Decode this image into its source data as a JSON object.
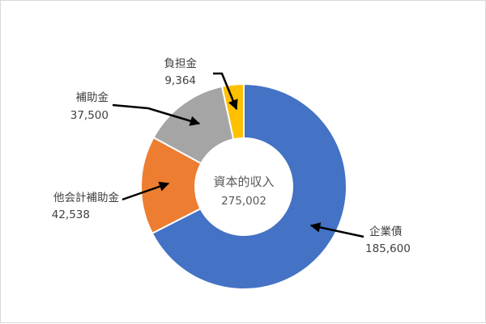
{
  "chart_data": {
    "type": "donut",
    "title": "",
    "center": {
      "label": "資本的収入",
      "total": "275,002"
    },
    "slices": [
      {
        "name": "企業債",
        "value": 185600,
        "value_label": "185,600",
        "color": "#4472c4"
      },
      {
        "name": "他会計補助金",
        "value": 42538,
        "value_label": "42,538",
        "color": "#ed7d31"
      },
      {
        "name": "補助金",
        "value": 37500,
        "value_label": "37,500",
        "color": "#a5a5a5"
      },
      {
        "name": "負担金",
        "value": 9364,
        "value_label": "9,364",
        "color": "#ffc000"
      }
    ]
  }
}
